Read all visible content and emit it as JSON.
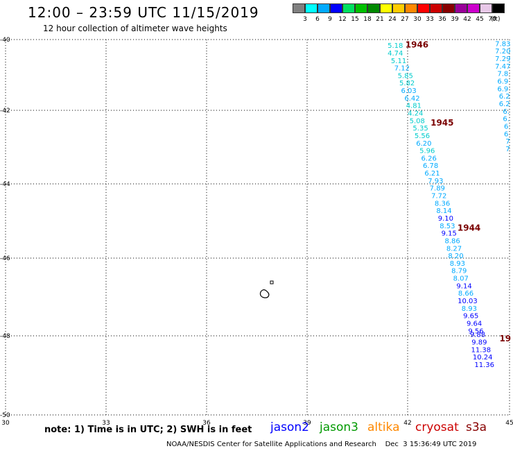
{
  "header": {
    "title": "12:00 – 23:59 UTC 11/15/2019",
    "subtitle": "12 hour collection of altimeter wave heights"
  },
  "legend": {
    "bins": [
      {
        "label": "3",
        "color": "#808080"
      },
      {
        "label": "6",
        "color": "#00ffff"
      },
      {
        "label": "9",
        "color": "#00aaff"
      },
      {
        "label": "12",
        "color": "#0000ff"
      },
      {
        "label": "15",
        "color": "#00e060"
      },
      {
        "label": "18",
        "color": "#00c000"
      },
      {
        "label": "21",
        "color": "#008800"
      },
      {
        "label": "24",
        "color": "#ffff00"
      },
      {
        "label": "27",
        "color": "#ffcc00"
      },
      {
        "label": "30",
        "color": "#ff8800"
      },
      {
        "label": "33",
        "color": "#ff0000"
      },
      {
        "label": "36",
        "color": "#cc0000"
      },
      {
        "label": "39",
        "color": "#880000"
      },
      {
        "label": "42",
        "color": "#990099"
      },
      {
        "label": "45",
        "color": "#cc00cc"
      },
      {
        "label": "70",
        "color": "#e8c8e8"
      },
      {
        "label": "",
        "color": "#000000"
      }
    ],
    "unit": "(ft)"
  },
  "map": {
    "lon_ticks": [
      "30",
      "33",
      "36",
      "39",
      "42",
      "45"
    ],
    "lat_ticks": [
      "-40",
      "-42",
      "-44",
      "-46",
      "-48",
      "-50"
    ]
  },
  "chart_data": {
    "type": "scatter",
    "title": "12 hour collection of altimeter wave heights",
    "xlabel": "",
    "ylabel": "",
    "xlim": [
      30,
      45
    ],
    "ylim": [
      -50,
      -40
    ],
    "series": [
      {
        "name": "track_main",
        "points": [
          [
            41.6,
            -40.15,
            "5.18"
          ],
          [
            41.6,
            -40.35,
            "4.74"
          ],
          [
            41.7,
            -40.55,
            "5.11"
          ],
          [
            41.8,
            -40.75,
            "7.12"
          ],
          [
            41.9,
            -40.95,
            "5.85"
          ],
          [
            41.95,
            -41.15,
            "5.82"
          ],
          [
            42.0,
            -41.35,
            "6.03"
          ],
          [
            42.1,
            -41.55,
            "6.42"
          ],
          [
            42.15,
            -41.75,
            "4.81"
          ],
          [
            42.2,
            -41.95,
            "4.24"
          ],
          [
            42.25,
            -42.15,
            "5.08"
          ],
          [
            42.35,
            -42.35,
            "5.35"
          ],
          [
            42.4,
            -42.55,
            "5.56"
          ],
          [
            42.45,
            -42.75,
            "6.20"
          ],
          [
            42.55,
            -42.95,
            "5.96"
          ],
          [
            42.6,
            -43.15,
            "6.26"
          ],
          [
            42.65,
            -43.35,
            "6.78"
          ],
          [
            42.7,
            -43.55,
            "6.21"
          ],
          [
            42.8,
            -43.75,
            "7.93"
          ],
          [
            42.85,
            -43.95,
            "7.89"
          ],
          [
            42.9,
            -44.15,
            "7.72"
          ],
          [
            43.0,
            -44.35,
            "8.36"
          ],
          [
            43.05,
            -44.55,
            "8.14"
          ],
          [
            43.1,
            -44.75,
            "9.10"
          ],
          [
            43.15,
            -44.95,
            "8.53"
          ],
          [
            43.2,
            -45.15,
            "9.15"
          ],
          [
            43.3,
            -45.35,
            "8.86"
          ],
          [
            43.35,
            -45.55,
            "8.27"
          ],
          [
            43.4,
            -45.75,
            "8.20"
          ],
          [
            43.45,
            -45.95,
            "8.93"
          ],
          [
            43.5,
            -46.15,
            "8.79"
          ],
          [
            43.55,
            -46.35,
            "8.07"
          ],
          [
            43.65,
            -46.55,
            "9.14"
          ],
          [
            43.7,
            -46.75,
            "8.66"
          ],
          [
            43.75,
            -46.95,
            "10.03"
          ],
          [
            43.8,
            -47.15,
            "8.93"
          ],
          [
            43.85,
            -47.35,
            "9.65"
          ],
          [
            43.95,
            -47.55,
            "9.64"
          ],
          [
            44.0,
            -47.75,
            "9.56"
          ],
          [
            44.05,
            -47.85,
            "9.88"
          ],
          [
            44.1,
            -48.05,
            "9.89"
          ],
          [
            44.15,
            -48.25,
            "11.38"
          ],
          [
            44.2,
            -48.45,
            "10.24"
          ],
          [
            44.25,
            -48.65,
            "11.36"
          ]
        ]
      },
      {
        "name": "track_east",
        "points": [
          [
            44.8,
            -40.1,
            "7.83"
          ],
          [
            44.8,
            -40.3,
            "7.20"
          ],
          [
            44.8,
            -40.5,
            "7.29"
          ],
          [
            44.8,
            -40.7,
            "7.47"
          ],
          [
            44.8,
            -40.9,
            "7.8"
          ],
          [
            44.8,
            -41.1,
            "6.9"
          ],
          [
            44.8,
            -41.3,
            "6.9"
          ],
          [
            44.85,
            -41.5,
            "6.2"
          ],
          [
            44.85,
            -41.7,
            "6.2"
          ],
          [
            44.9,
            -41.9,
            "6."
          ],
          [
            44.9,
            -42.1,
            "6."
          ],
          [
            44.9,
            -42.3,
            "6"
          ],
          [
            44.9,
            -42.5,
            "6"
          ],
          [
            44.95,
            -42.7,
            "7"
          ],
          [
            44.95,
            -42.9,
            "7"
          ]
        ]
      }
    ],
    "time_labels": [
      {
        "text": "1946",
        "lon": 41.9,
        "lat": -40.12
      },
      {
        "text": "1945",
        "lon": 42.65,
        "lat": -42.2
      },
      {
        "text": "1944",
        "lon": 43.45,
        "lat": -45.0
      },
      {
        "text": "19",
        "lon": 44.7,
        "lat": -47.95
      }
    ]
  },
  "note": "note: 1) Time is in UTC; 2) SWH is in feet",
  "satellites": [
    {
      "name": "jason2",
      "color": "#0000ff"
    },
    {
      "name": "jason3",
      "color": "#009900"
    },
    {
      "name": "altika",
      "color": "#ff8800"
    },
    {
      "name": "cryosat",
      "color": "#cc0000"
    },
    {
      "name": "s3a",
      "color": "#880000"
    }
  ],
  "footer": "NOAA/NESDIS Center for Satellite Applications and Research    Dec  3 15:36:49 UTC 2019"
}
